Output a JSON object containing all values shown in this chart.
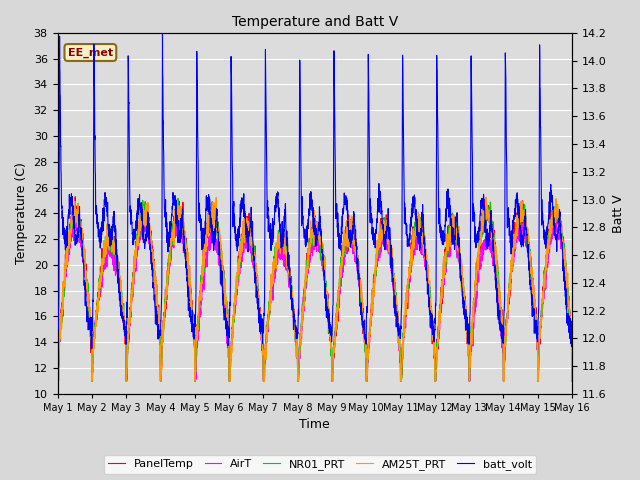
{
  "title": "Temperature and Batt V",
  "xlabel": "Time",
  "ylabel_left": "Temperature (C)",
  "ylabel_right": "Batt V",
  "ylim_left": [
    10,
    38
  ],
  "ylim_right": [
    11.6,
    14.2
  ],
  "xtick_labels": [
    "May 1",
    "May 2",
    "May 3",
    "May 4",
    "May 5",
    "May 6",
    "May 7",
    "May 8",
    "May 9",
    "May 10",
    "May 11",
    "May 12",
    "May 13",
    "May 14",
    "May 15",
    "May 16"
  ],
  "legend_labels": [
    "PanelTemp",
    "AirT",
    "NR01_PRT",
    "AM25T_PRT",
    "batt_volt"
  ],
  "legend_colors": [
    "#ff0000",
    "#ff00ff",
    "#00cc00",
    "#ff9900",
    "#0000ff"
  ],
  "watermark_text": "EE_met",
  "plot_bg_color": "#dcdcdc",
  "grid_color": "#ffffff",
  "line_width": 0.8,
  "yticks_left": [
    10,
    12,
    14,
    16,
    18,
    20,
    22,
    24,
    26,
    28,
    30,
    32,
    34,
    36,
    38
  ],
  "yticks_right": [
    11.6,
    11.8,
    12.0,
    12.2,
    12.4,
    12.6,
    12.8,
    13.0,
    13.2,
    13.4,
    13.6,
    13.8,
    14.0,
    14.2
  ]
}
